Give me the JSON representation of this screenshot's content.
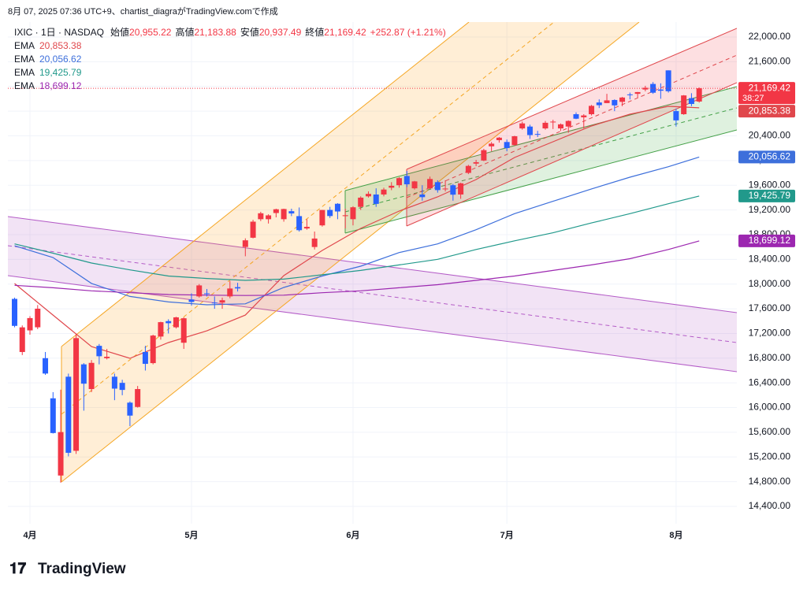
{
  "caption": "8月 07, 2025 07:36 UTC+9、chartist_diagraがTradingView.comで作成",
  "brand": "TradingView",
  "chart_data": {
    "type": "candlestick",
    "symbol": "IXIC · 1日 · NASDAQ",
    "ohlc_legend": [
      {
        "label": "始値",
        "value": "20,955.22"
      },
      {
        "label": "高値",
        "value": "21,183.88"
      },
      {
        "label": "安値",
        "value": "20,937.49"
      },
      {
        "label": "終値",
        "value": "21,169.42"
      }
    ],
    "change": "+252.87 (+1.21%)",
    "last_price_label": "21,169.42",
    "countdown": "38:27",
    "up_color": "#f23645",
    "down_color": "#2962ff",
    "grid": true,
    "ylim": [
      14120,
      22242
    ],
    "yticks": [
      {
        "value": 14400,
        "label": "14,400.00"
      },
      {
        "value": 14800,
        "label": "14,800.00"
      },
      {
        "value": 15200,
        "label": "15,200.00"
      },
      {
        "value": 15600,
        "label": "15,600.00"
      },
      {
        "value": 16000,
        "label": "16,000.00"
      },
      {
        "value": 16400,
        "label": "16,400.00"
      },
      {
        "value": 16800,
        "label": "16,800.00"
      },
      {
        "value": 17200,
        "label": "17,200.00"
      },
      {
        "value": 17600,
        "label": "17,600.00"
      },
      {
        "value": 18000,
        "label": "18,000.00"
      },
      {
        "value": 18400,
        "label": "18,400.00"
      },
      {
        "value": 18800,
        "label": "18,800.00"
      },
      {
        "value": 19200,
        "label": "19,200.00"
      },
      {
        "value": 19600,
        "label": "19,600.00"
      },
      {
        "value": 20000,
        "label": "20,000.00"
      },
      {
        "value": 20400,
        "label": "20,400.00"
      },
      {
        "value": 20800,
        "label": "20,800.00"
      },
      {
        "value": 21200,
        "label": "21,200.00"
      },
      {
        "value": 21600,
        "label": "21,600.00"
      },
      {
        "value": 22000,
        "label": "22,000.00"
      }
    ],
    "xlim": [
      -0.87,
      93.9
    ],
    "xticks": [
      {
        "value": 2,
        "label": "4月"
      },
      {
        "value": 23,
        "label": "5月"
      },
      {
        "value": 44,
        "label": "6月"
      },
      {
        "value": 64,
        "label": "7月"
      },
      {
        "value": 86,
        "label": "8月"
      }
    ],
    "candles": {
      "open": [
        17760,
        16900,
        17250,
        17300,
        16800,
        16150,
        14900,
        16500,
        15300,
        16700,
        16300,
        17000,
        16800,
        16500,
        16400,
        16080,
        16010,
        16900,
        16720,
        17150,
        17400,
        17300,
        17050,
        17750,
        17800,
        17850,
        17700,
        17700,
        17800,
        17950,
        18600,
        18750,
        19050,
        19050,
        19150,
        19050,
        19180,
        19100,
        18900,
        18600,
        18950,
        19200,
        19300,
        19100,
        19050,
        19250,
        19420,
        19450,
        19450,
        19560,
        19600,
        19750,
        19550,
        19450,
        19550,
        19650,
        19540,
        19600,
        19450,
        19800,
        19950,
        20000,
        20230,
        20330,
        20300,
        20250,
        20520,
        20550,
        20430,
        20520,
        20620,
        20520,
        20550,
        20750,
        20700,
        20750,
        20940,
        20930,
        20980,
        20950,
        21070,
        21080,
        21150,
        21240,
        21150,
        21460,
        20800,
        20750,
        21010,
        20955.22
      ],
      "high": [
        17780,
        17330,
        17480,
        17660,
        16900,
        16250,
        16290,
        16550,
        17200,
        16720,
        16770,
        17030,
        16950,
        16550,
        16450,
        16100,
        16350,
        17000,
        17180,
        17390,
        17430,
        17470,
        17460,
        17850,
        18000,
        17920,
        17800,
        17780,
        18050,
        18020,
        18740,
        19040,
        19170,
        19130,
        19220,
        19220,
        19220,
        19240,
        19050,
        18850,
        19200,
        19250,
        19310,
        19220,
        19260,
        19420,
        19500,
        19550,
        19560,
        19650,
        19730,
        19830,
        19670,
        19600,
        19740,
        19680,
        19680,
        19620,
        19640,
        19930,
        20010,
        20190,
        20300,
        20380,
        20340,
        20400,
        20630,
        20580,
        20480,
        20640,
        20660,
        20600,
        20650,
        20780,
        20750,
        20900,
        20990,
        21080,
        20990,
        21030,
        21100,
        21110,
        21210,
        21270,
        21250,
        21460,
        20840,
        21060,
        21090,
        21183.88
      ],
      "low": [
        17300,
        16850,
        17180,
        17270,
        16530,
        15580,
        14784,
        15210,
        15250,
        15950,
        16250,
        16700,
        16780,
        16120,
        16200,
        15700,
        16000,
        16600,
        16700,
        17100,
        17200,
        17280,
        16950,
        17650,
        17780,
        17800,
        17600,
        17600,
        17770,
        17880,
        18450,
        18740,
        19020,
        18980,
        19080,
        19010,
        19100,
        18850,
        18880,
        18560,
        18930,
        19070,
        19050,
        18900,
        18950,
        19200,
        19400,
        19250,
        19420,
        19520,
        19560,
        19570,
        19530,
        19350,
        19540,
        19480,
        19500,
        19350,
        19380,
        19780,
        19910,
        19990,
        20150,
        20290,
        20150,
        20240,
        20500,
        20350,
        20380,
        20500,
        20510,
        20480,
        20450,
        20670,
        20520,
        20730,
        20850,
        20930,
        20800,
        20880,
        20990,
        21020,
        21120,
        21080,
        21000,
        21100,
        20550,
        20740,
        20880,
        20937.49
      ],
      "close": [
        17323,
        17299,
        17449,
        17601,
        16551,
        15588,
        15603,
        15268,
        17125,
        16387,
        16724,
        16831,
        16823,
        16307,
        16286,
        15870,
        16300,
        16708,
        17166,
        17383,
        17366,
        17461,
        17446,
        17710,
        17978,
        17844,
        17689,
        17738,
        17928,
        17929,
        18708,
        19010,
        19146,
        19112,
        19211,
        19215,
        19143,
        18872,
        18926,
        18737,
        19199,
        19101,
        19175,
        19114,
        19243,
        19399,
        19460,
        19298,
        19530,
        19591,
        19715,
        19615,
        19662,
        19407,
        19701,
        19521,
        19546,
        19447,
        19631,
        19913,
        19973,
        20168,
        20273,
        20370,
        20202,
        20393,
        20601,
        20412,
        20418,
        20611,
        20630,
        20586,
        20641,
        20677,
        20730,
        20885,
        20896,
        20974,
        20893,
        21020,
        21058,
        21108,
        21178,
        21098,
        21130,
        21122,
        20650,
        21054,
        20916,
        21169.42
      ]
    },
    "series": [
      {
        "name": "EMA",
        "color": "#e0474c",
        "last_label": "20,853.38",
        "x": [
          0,
          5,
          10,
          15,
          20,
          25,
          30,
          35,
          40,
          45,
          50,
          55,
          60,
          65,
          70,
          75,
          80,
          85,
          89
        ],
        "values": [
          18009,
          17498,
          16988,
          16797,
          17052,
          17243,
          17498,
          18136,
          18544,
          18901,
          19182,
          19411,
          19692,
          20049,
          20304,
          20559,
          20750,
          20878,
          20853.38
        ]
      },
      {
        "name": "EMA",
        "color": "#3d6fdb",
        "last_label": "20,056.62",
        "x": [
          0,
          5,
          10,
          15,
          20,
          25,
          30,
          35,
          40,
          45,
          50,
          55,
          60,
          65,
          70,
          75,
          80,
          85,
          89
        ],
        "values": [
          18620,
          18430,
          18010,
          17800,
          17710,
          17665,
          17680,
          17945,
          18130,
          18290,
          18510,
          18650,
          18880,
          19140,
          19340,
          19540,
          19730,
          19900,
          20056.62
        ]
      },
      {
        "name": "EMA",
        "color": "#21998b",
        "last_label": "19,425.79",
        "x": [
          0,
          5,
          10,
          15,
          20,
          25,
          30,
          35,
          40,
          45,
          50,
          55,
          60,
          65,
          70,
          75,
          80,
          85,
          89
        ],
        "values": [
          18650,
          18500,
          18340,
          18230,
          18130,
          18090,
          18060,
          18080,
          18150,
          18220,
          18310,
          18400,
          18560,
          18700,
          18830,
          18990,
          19140,
          19300,
          19425.79
        ]
      },
      {
        "name": "EMA",
        "color": "#9c27b0",
        "last_label": "18,699.12",
        "x": [
          0,
          5,
          10,
          15,
          20,
          25,
          30,
          35,
          40,
          45,
          50,
          55,
          60,
          65,
          70,
          75,
          80,
          85,
          89
        ],
        "values": [
          17980,
          17940,
          17890,
          17860,
          17830,
          17820,
          17815,
          17820,
          17860,
          17890,
          17940,
          17990,
          18060,
          18130,
          18220,
          18310,
          18410,
          18560,
          18699.12
        ]
      }
    ]
  }
}
